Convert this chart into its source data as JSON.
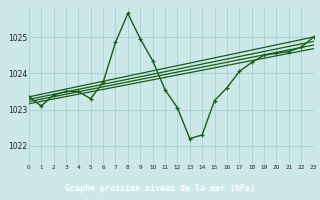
{
  "title": "Graphe pression niveau de la mer (hPa)",
  "bg_color": "#cce8e8",
  "label_bg_color": "#2d6e2d",
  "label_text_color": "#ffffff",
  "grid_color": "#aad4d4",
  "line_color": "#1a5c1a",
  "xlim": [
    0,
    23
  ],
  "ylim": [
    1021.5,
    1025.8
  ],
  "yticks": [
    1022,
    1023,
    1024,
    1025
  ],
  "xticks": [
    0,
    1,
    2,
    3,
    4,
    5,
    6,
    7,
    8,
    9,
    10,
    11,
    12,
    13,
    14,
    15,
    16,
    17,
    18,
    19,
    20,
    21,
    22,
    23
  ],
  "series": {
    "main": [
      [
        0,
        1023.35
      ],
      [
        1,
        1023.1
      ],
      [
        2,
        1023.4
      ],
      [
        3,
        1023.5
      ],
      [
        4,
        1023.5
      ],
      [
        5,
        1023.3
      ],
      [
        6,
        1023.75
      ],
      [
        7,
        1024.85
      ],
      [
        8,
        1025.65
      ],
      [
        9,
        1024.95
      ],
      [
        10,
        1024.35
      ],
      [
        11,
        1023.55
      ],
      [
        12,
        1023.05
      ],
      [
        13,
        1022.2
      ],
      [
        14,
        1022.3
      ],
      [
        15,
        1023.25
      ],
      [
        16,
        1023.6
      ],
      [
        17,
        1024.05
      ],
      [
        18,
        1024.3
      ],
      [
        19,
        1024.5
      ],
      [
        20,
        1024.55
      ],
      [
        21,
        1024.6
      ],
      [
        22,
        1024.72
      ],
      [
        23,
        1025.0
      ]
    ],
    "trend_lines": [
      [
        [
          0,
          1023.35
        ],
        [
          23,
          1025.0
        ]
      ],
      [
        [
          0,
          1023.28
        ],
        [
          23,
          1024.88
        ]
      ],
      [
        [
          0,
          1023.22
        ],
        [
          23,
          1024.78
        ]
      ],
      [
        [
          0,
          1023.16
        ],
        [
          23,
          1024.68
        ]
      ]
    ]
  }
}
